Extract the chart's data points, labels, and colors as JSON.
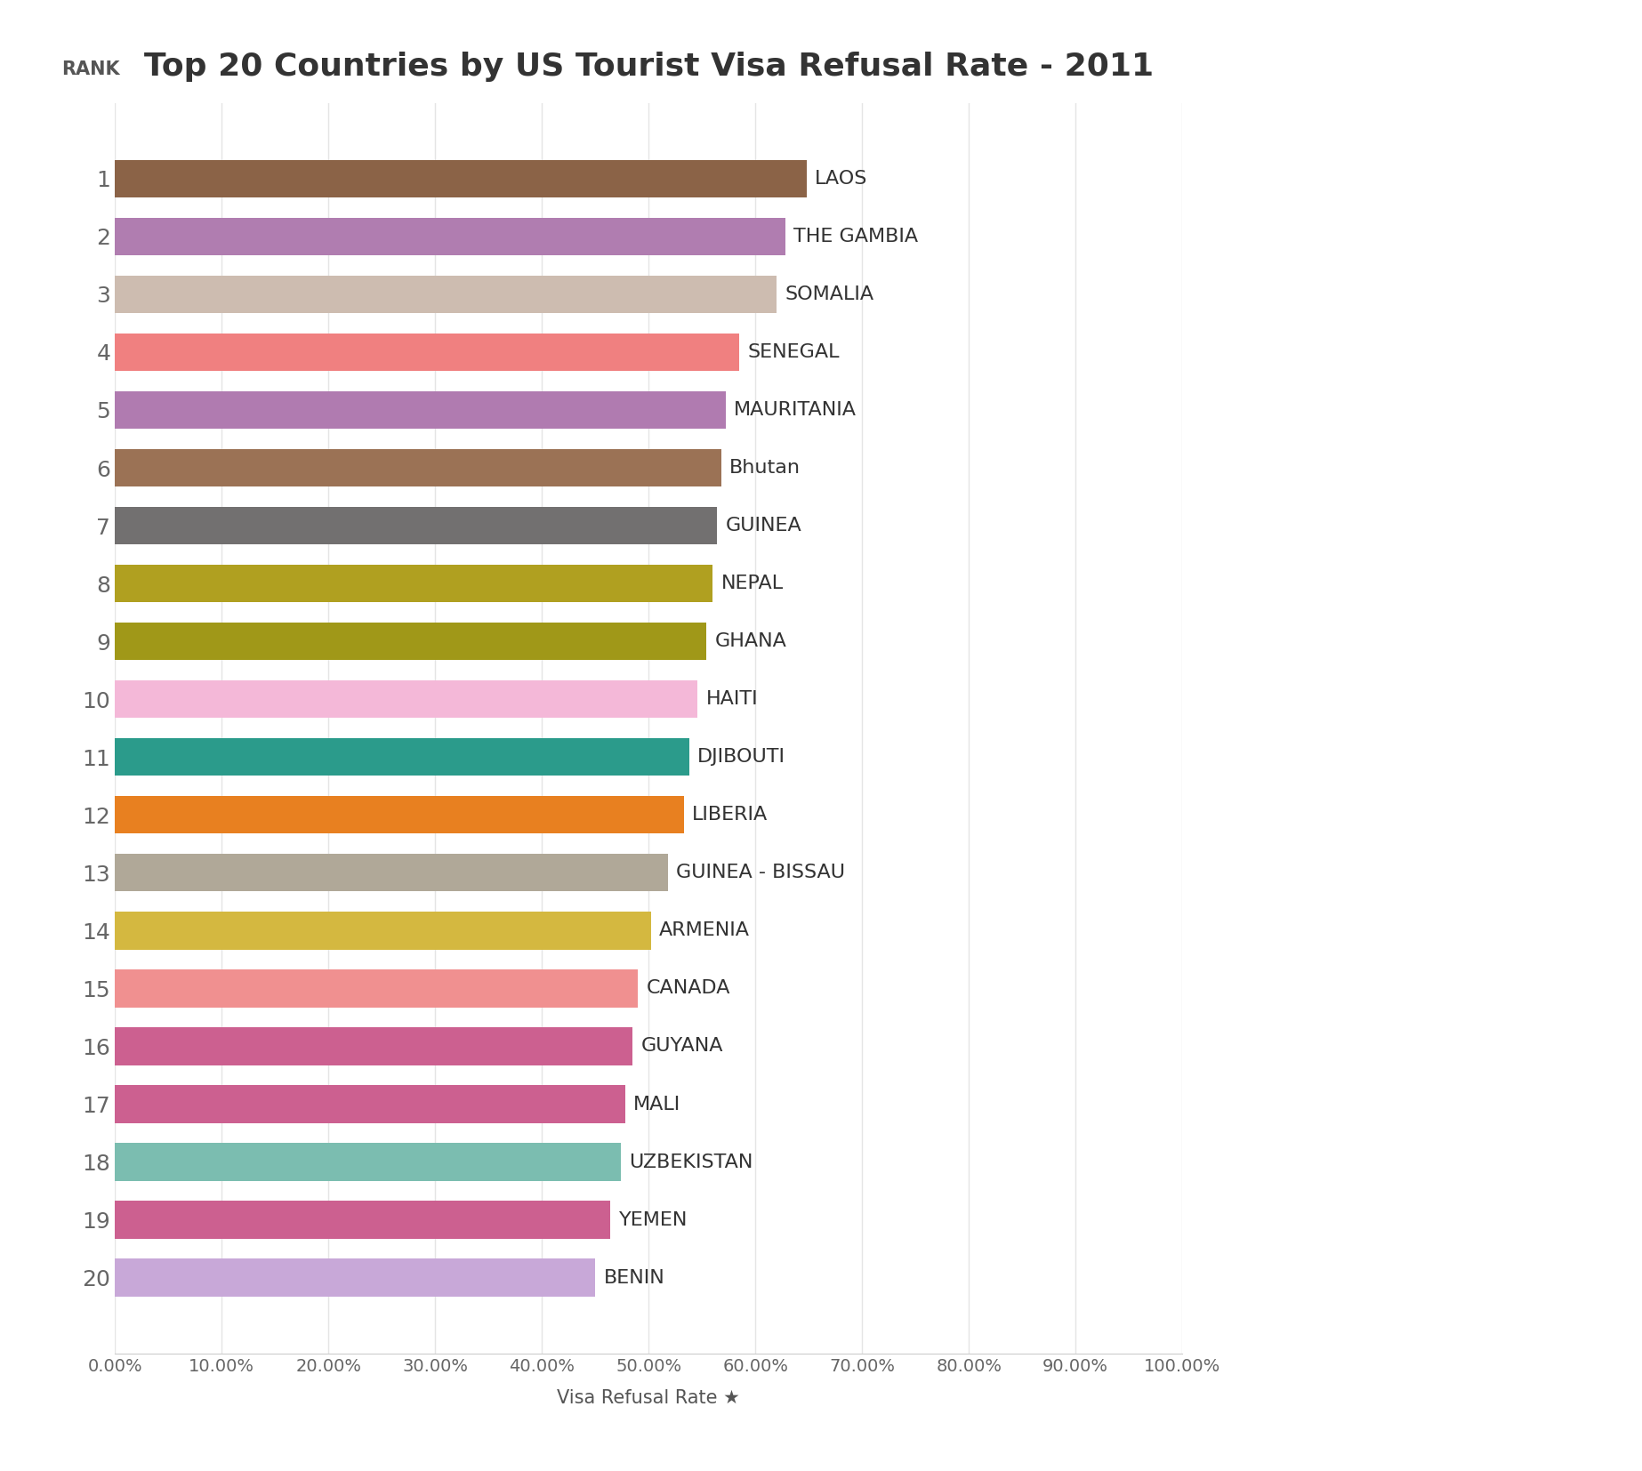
{
  "title": "Top 20 Countries by US Tourist Visa Refusal Rate - 2011",
  "countries": [
    "LAOS",
    "THE GAMBIA",
    "SOMALIA",
    "SENEGAL",
    "MAURITANIA",
    "Bhutan",
    "GUINEA",
    "NEPAL",
    "GHANA",
    "HAITI",
    "DJIBOUTI",
    "LIBERIA",
    "GUINEA - BISSAU",
    "ARMENIA",
    "CANADA",
    "GUYANA",
    "MALI",
    "UZBEKISTAN",
    "YEMEN",
    "BENIN"
  ],
  "values": [
    0.648,
    0.628,
    0.62,
    0.585,
    0.572,
    0.568,
    0.564,
    0.56,
    0.554,
    0.546,
    0.538,
    0.533,
    0.518,
    0.502,
    0.49,
    0.485,
    0.478,
    0.474,
    0.464,
    0.45
  ],
  "colors": [
    "#8B6347",
    "#B07DB0",
    "#CDBCB0",
    "#F08080",
    "#B07BB0",
    "#9B7255",
    "#727070",
    "#B0A020",
    "#A09818",
    "#F4B8D8",
    "#2B9B8B",
    "#E88020",
    "#B0A898",
    "#D4B840",
    "#F09090",
    "#CC6090",
    "#CC6090",
    "#7BBDB0",
    "#CC6090",
    "#C8A8D8"
  ],
  "xlabel": "Visa Refusal Rate ★",
  "xlim": [
    0,
    1.0
  ],
  "xticks": [
    0.0,
    0.1,
    0.2,
    0.3,
    0.4,
    0.5,
    0.6,
    0.7,
    0.8,
    0.9,
    1.0
  ],
  "xtick_labels": [
    "0.00%",
    "10.00%",
    "20.00%",
    "30.00%",
    "40.00%",
    "50.00%",
    "60.00%",
    "70.00%",
    "80.00%",
    "90.00%",
    "100.00%"
  ],
  "background_color": "#FFFFFF",
  "title_fontsize": 26,
  "label_fontsize": 15,
  "tick_fontsize": 14,
  "bar_label_fontsize": 16,
  "rank_fontsize": 18,
  "bar_height": 0.65
}
